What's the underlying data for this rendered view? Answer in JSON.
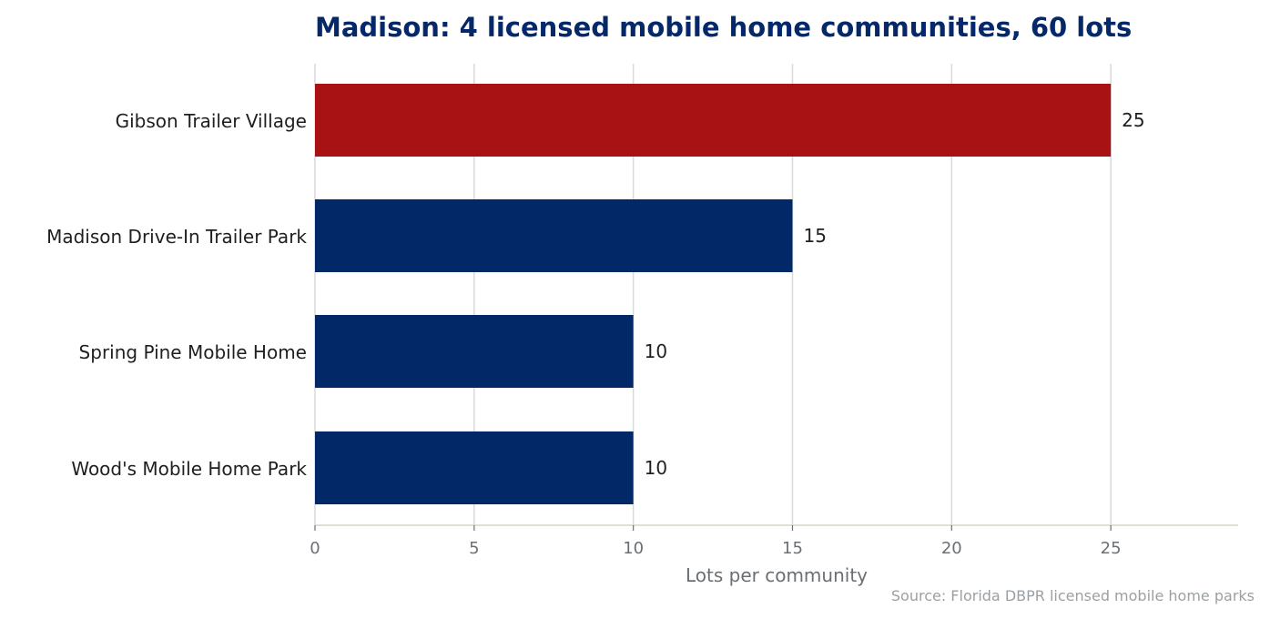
{
  "chart_data": {
    "type": "bar",
    "orientation": "horizontal",
    "title": "Madison: 4 licensed mobile home communities, 60 lots",
    "categories": [
      "Gibson Trailer Village",
      "Madison Drive-In Trailer Park",
      "Spring Pine Mobile Home",
      "Wood's Mobile Home Park"
    ],
    "values": [
      25,
      15,
      10,
      10
    ],
    "value_labels": [
      "25",
      "15",
      "10",
      "10"
    ],
    "xlabel": "Lots per community",
    "ylabel": "",
    "xlim": [
      0,
      29
    ],
    "xticks": [
      0,
      5,
      10,
      15,
      20,
      25
    ],
    "xtick_labels": [
      "0",
      "5",
      "10",
      "15",
      "20",
      "25"
    ],
    "grid": "vertical",
    "highlight_index": 0,
    "source": "Source: Florida DBPR licensed mobile home parks"
  },
  "colors": {
    "title": "#04286a",
    "highlight": "#a81215",
    "bar": "#022868",
    "grid": "#d9d9d9",
    "axis": "#d8d6c8"
  }
}
